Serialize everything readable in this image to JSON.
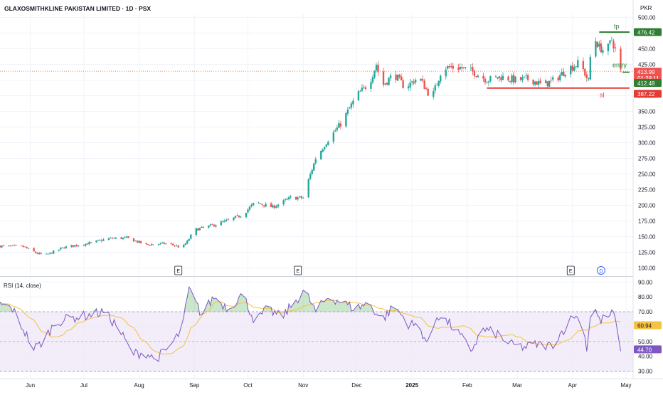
{
  "header": {
    "title": "GLAXOSMITHKLINE PAKISTAN LIMITED · 1D · PSX",
    "currency": "PKR"
  },
  "colors": {
    "up": "#26a69a",
    "down": "#ef5350",
    "rsi_line": "#7e57c2",
    "rsi_ma": "#f5c342",
    "rsi_band": "#ede7f6",
    "tp_line": "#2e7d32",
    "sl_line": "#e53935",
    "grid": "#f0f3fa",
    "axis_text": "#131722"
  },
  "chart_data": [
    {
      "type": "candlestick",
      "ylim": [
        87,
        505
      ],
      "y_ticks": [
        "100.00",
        "125.00",
        "150.00",
        "175.00",
        "200.00",
        "225.00",
        "250.00",
        "275.00",
        "300.00",
        "325.00",
        "350.00",
        "375.00",
        "400.00",
        "425.00",
        "450.00",
        "475.00",
        "500.00"
      ],
      "x_ticks": [
        "Jun",
        "Jul",
        "Aug",
        "Sep",
        "Oct",
        "Nov",
        "Dec",
        "2025",
        "Feb",
        "Mar",
        "Apr",
        "May"
      ],
      "x_range": [
        "2024-05-15",
        "2025-05-03"
      ],
      "close_anchors": [
        [
          "2024-05-15",
          135
        ],
        [
          "2024-05-28",
          134
        ],
        [
          "2024-06-05",
          123
        ],
        [
          "2024-06-10",
          121
        ],
        [
          "2024-06-20",
          133
        ],
        [
          "2024-07-05",
          140
        ],
        [
          "2024-07-15",
          147
        ],
        [
          "2024-07-25",
          148
        ],
        [
          "2024-08-05",
          137
        ],
        [
          "2024-08-15",
          139
        ],
        [
          "2024-08-20",
          137
        ],
        [
          "2024-08-25",
          132
        ],
        [
          "2024-08-28",
          142
        ],
        [
          "2024-09-01",
          161
        ],
        [
          "2024-09-10",
          167
        ],
        [
          "2024-09-20",
          176
        ],
        [
          "2024-09-28",
          185
        ],
        [
          "2024-10-05",
          205
        ],
        [
          "2024-10-15",
          197
        ],
        [
          "2024-10-25",
          212
        ],
        [
          "2024-11-01",
          212
        ],
        [
          "2024-11-03",
          232
        ],
        [
          "2024-11-08",
          275
        ],
        [
          "2024-11-15",
          305
        ],
        [
          "2024-11-22",
          330
        ],
        [
          "2024-12-01",
          375
        ],
        [
          "2024-12-08",
          395
        ],
        [
          "2024-12-12",
          425
        ],
        [
          "2024-12-15",
          390
        ],
        [
          "2024-12-22",
          410
        ],
        [
          "2024-12-28",
          388
        ],
        [
          "2025-01-05",
          405
        ],
        [
          "2025-01-12",
          370
        ],
        [
          "2025-01-18",
          420
        ],
        [
          "2025-01-28",
          420
        ],
        [
          "2025-02-05",
          412
        ],
        [
          "2025-02-12",
          400
        ],
        [
          "2025-02-20",
          405
        ],
        [
          "2025-02-28",
          400
        ],
        [
          "2025-03-08",
          402
        ],
        [
          "2025-03-15",
          392
        ],
        [
          "2025-03-22",
          400
        ],
        [
          "2025-03-28",
          415
        ],
        [
          "2025-04-05",
          428
        ],
        [
          "2025-04-10",
          398
        ],
        [
          "2025-04-12",
          475
        ],
        [
          "2025-04-16",
          452
        ],
        [
          "2025-04-20",
          445
        ],
        [
          "2025-04-23",
          465
        ],
        [
          "2025-04-26",
          440
        ],
        [
          "2025-04-28",
          414
        ]
      ],
      "last_price": "413.99",
      "countdown": "01:28:11",
      "events": [
        {
          "date": "2024-08-23",
          "label": "E"
        },
        {
          "date": "2024-10-29",
          "label": "E"
        },
        {
          "date": "2025-03-31",
          "label": "E"
        },
        {
          "date": "2025-04-17",
          "label": "D"
        }
      ],
      "annotations": [
        {
          "name": "tp",
          "label": "tp",
          "price": 476.42,
          "price_label": "476.42",
          "from": "2025-04-16",
          "to": "2025-05-03"
        },
        {
          "name": "entry",
          "label": "entry",
          "price": 412.48,
          "price_label": "412.48",
          "from": "2025-04-29",
          "to": "2025-05-03"
        },
        {
          "name": "sl",
          "label": "sl",
          "price": 387.22,
          "price_label": "387.22",
          "from": "2025-02-12",
          "to": "2025-05-03"
        }
      ]
    },
    {
      "type": "line",
      "title": "RSI (14, close)",
      "ylim": [
        25,
        93
      ],
      "y_ticks": [
        "30.00",
        "40.00",
        "50.00",
        "60.00",
        "70.00",
        "80.00",
        "90.00"
      ],
      "bands": [
        30,
        50,
        70
      ],
      "rsi_anchors": [
        [
          "2024-05-15",
          75
        ],
        [
          "2024-05-22",
          72
        ],
        [
          "2024-06-03",
          45
        ],
        [
          "2024-06-08",
          50
        ],
        [
          "2024-06-15",
          63
        ],
        [
          "2024-06-25",
          66
        ],
        [
          "2024-07-05",
          68
        ],
        [
          "2024-07-12",
          70
        ],
        [
          "2024-07-20",
          60
        ],
        [
          "2024-07-28",
          42
        ],
        [
          "2024-08-05",
          42
        ],
        [
          "2024-08-10",
          38
        ],
        [
          "2024-08-18",
          46
        ],
        [
          "2024-08-25",
          58
        ],
        [
          "2024-08-29",
          85
        ],
        [
          "2024-09-05",
          68
        ],
        [
          "2024-09-12",
          80
        ],
        [
          "2024-09-20",
          72
        ],
        [
          "2024-09-28",
          82
        ],
        [
          "2024-10-05",
          63
        ],
        [
          "2024-10-12",
          72
        ],
        [
          "2024-10-20",
          66
        ],
        [
          "2024-10-28",
          78
        ],
        [
          "2024-11-02",
          84
        ],
        [
          "2024-11-08",
          70
        ],
        [
          "2024-11-15",
          80
        ],
        [
          "2024-11-22",
          77
        ],
        [
          "2024-11-30",
          72
        ],
        [
          "2024-12-08",
          76
        ],
        [
          "2024-12-15",
          64
        ],
        [
          "2024-12-22",
          74
        ],
        [
          "2024-12-30",
          62
        ],
        [
          "2025-01-05",
          60
        ],
        [
          "2025-01-10",
          48
        ],
        [
          "2025-01-15",
          68
        ],
        [
          "2025-01-22",
          62
        ],
        [
          "2025-01-28",
          54
        ],
        [
          "2025-02-03",
          44
        ],
        [
          "2025-02-10",
          58
        ],
        [
          "2025-02-18",
          55
        ],
        [
          "2025-02-25",
          48
        ],
        [
          "2025-03-05",
          46
        ],
        [
          "2025-03-12",
          48
        ],
        [
          "2025-03-20",
          47
        ],
        [
          "2025-03-27",
          58
        ],
        [
          "2025-04-02",
          68
        ],
        [
          "2025-04-07",
          60
        ],
        [
          "2025-04-09",
          45
        ],
        [
          "2025-04-12",
          78
        ],
        [
          "2025-04-16",
          64
        ],
        [
          "2025-04-20",
          66
        ],
        [
          "2025-04-24",
          69
        ],
        [
          "2025-04-26",
          58
        ],
        [
          "2025-04-28",
          46
        ]
      ],
      "ma_label": "60.94",
      "rsi_label": "44.70"
    }
  ]
}
